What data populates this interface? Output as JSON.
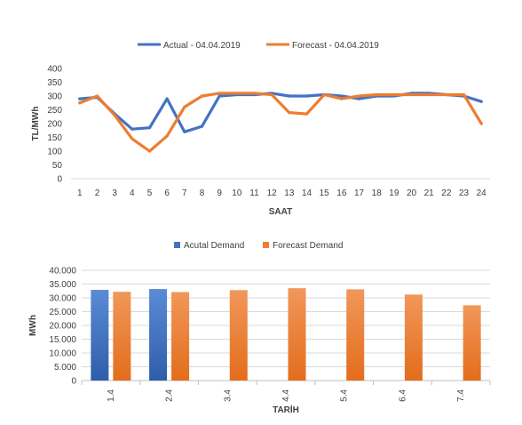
{
  "chart_data": [
    {
      "type": "line",
      "title": "",
      "xlabel": "SAAT",
      "ylabel": "TL/MWh",
      "ylim": [
        0,
        400
      ],
      "yticks": [
        "0",
        "50",
        "100",
        "150",
        "200",
        "250",
        "300",
        "350",
        "400"
      ],
      "x": [
        "1",
        "2",
        "3",
        "4",
        "5",
        "6",
        "7",
        "8",
        "9",
        "10",
        "11",
        "12",
        "13",
        "14",
        "15",
        "16",
        "17",
        "18",
        "19",
        "20",
        "21",
        "22",
        "23",
        "24"
      ],
      "legend_position": "top",
      "grid": false,
      "series": [
        {
          "name": "Actual - 04.04.2019",
          "color": "#4472C4",
          "values": [
            290,
            295,
            235,
            180,
            185,
            290,
            170,
            190,
            300,
            305,
            305,
            310,
            300,
            300,
            305,
            300,
            290,
            300,
            300,
            310,
            310,
            305,
            300,
            280
          ]
        },
        {
          "name": "Forecast - 04.04.2019",
          "color": "#ED7D31",
          "values": [
            275,
            300,
            230,
            145,
            100,
            155,
            260,
            300,
            310,
            310,
            310,
            305,
            240,
            235,
            305,
            290,
            300,
            305,
            305,
            305,
            305,
            305,
            305,
            200
          ]
        }
      ]
    },
    {
      "type": "bar",
      "title": "",
      "xlabel": "TARİH",
      "ylabel": "MWh",
      "ylim": [
        0,
        40000
      ],
      "yticks": [
        "0",
        "5.000",
        "10.000",
        "15.000",
        "20.000",
        "25.000",
        "30.000",
        "35.000",
        "40.000"
      ],
      "categories": [
        "1.4",
        "2.4",
        "3.4",
        "4.4",
        "5.4",
        "6.4",
        "7.4"
      ],
      "legend_position": "top",
      "grid": true,
      "series": [
        {
          "name": "Acutal Demand",
          "color": "#4472C4",
          "values": [
            32900,
            33200,
            null,
            null,
            null,
            null,
            null
          ]
        },
        {
          "name": "Forecast Demand",
          "color": "#ED7D31",
          "values": [
            32200,
            32100,
            32800,
            33500,
            33100,
            31200,
            27300
          ]
        }
      ]
    }
  ]
}
